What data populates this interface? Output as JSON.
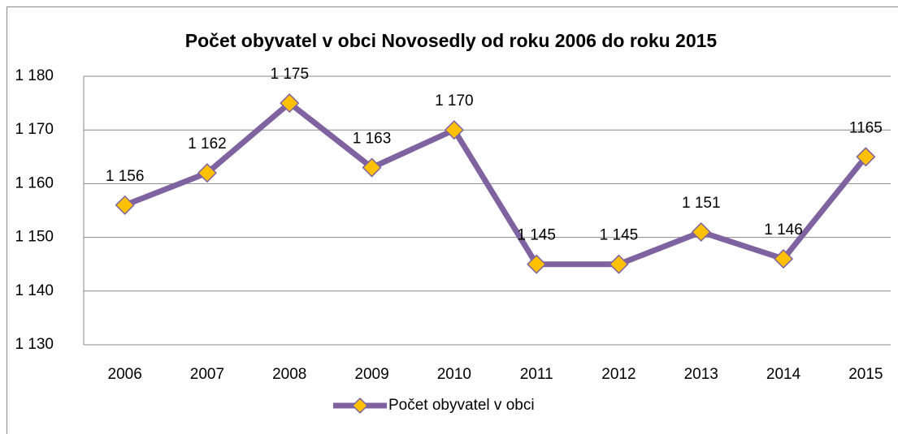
{
  "chart_data": {
    "type": "line",
    "title": "Počet obyvatel v obci Novosedly od roku 2006 do roku 2015",
    "categories": [
      "2006",
      "2007",
      "2008",
      "2009",
      "2010",
      "2011",
      "2012",
      "2013",
      "2014",
      "2015"
    ],
    "series": [
      {
        "name": "Počet obyvatel v obci",
        "color": "#7f63a1",
        "marker_color": "#ffc000",
        "values": [
          1156,
          1162,
          1175,
          1163,
          1170,
          1145,
          1145,
          1151,
          1146,
          1165
        ],
        "value_labels": [
          "1 156",
          "1 162",
          "1 175",
          "1 163",
          "1 170",
          "1 145",
          "1 145",
          "1 151",
          "1 146",
          "1165"
        ]
      }
    ],
    "ylim": [
      1130,
      1180
    ],
    "yticks": [
      {
        "value": 1130,
        "label": "1 130"
      },
      {
        "value": 1140,
        "label": "1 140"
      },
      {
        "value": 1150,
        "label": "1 150"
      },
      {
        "value": 1160,
        "label": "1 160"
      },
      {
        "value": 1170,
        "label": "1 170"
      },
      {
        "value": 1180,
        "label": "1 180"
      }
    ],
    "grid": true,
    "legend": "bottom"
  }
}
